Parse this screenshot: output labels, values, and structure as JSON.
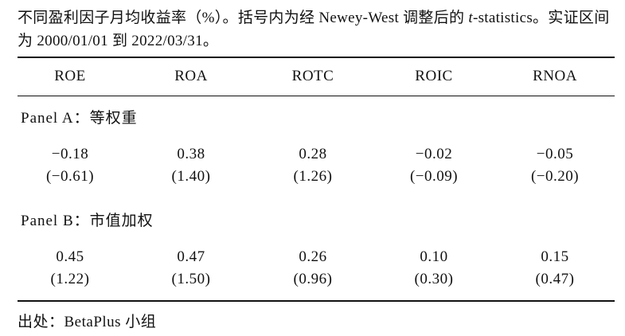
{
  "caption": {
    "before": "不同盈利因子月均收益率（%）。括号内为经 Newey-West 调整后的 ",
    "italic": "t",
    "after": "-statistics。实证区间为 2000/01/01 到 2022/03/31。"
  },
  "table": {
    "header": [
      "ROE",
      "ROA",
      "ROTC",
      "ROIC",
      "RNOA"
    ],
    "panels": [
      {
        "title": "Panel A：等权重",
        "values": [
          "−0.18",
          "0.38",
          "0.28",
          "−0.02",
          "−0.05"
        ],
        "tstats": [
          "(−0.61)",
          "(1.40)",
          "(1.26)",
          "(−0.09)",
          "(−0.20)"
        ]
      },
      {
        "title": "Panel B：市值加权",
        "values": [
          "0.45",
          "0.47",
          "0.26",
          "0.10",
          "0.15"
        ],
        "tstats": [
          "(1.22)",
          "(1.50)",
          "(0.96)",
          "(0.30)",
          "(0.47)"
        ]
      }
    ]
  },
  "source": "出处：BetaPlus 小组"
}
